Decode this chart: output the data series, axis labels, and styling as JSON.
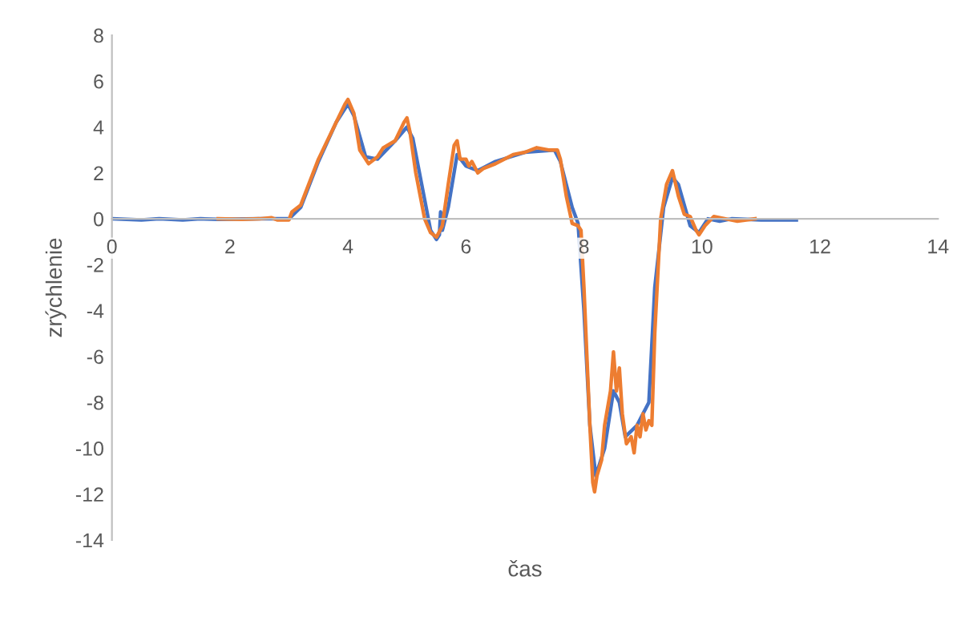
{
  "chart_data": {
    "type": "line",
    "xlabel": "čas",
    "ylabel": "zrýchlenie",
    "xlim": [
      0,
      14
    ],
    "xticks": [
      0,
      2,
      4,
      6,
      8,
      10,
      12,
      14
    ],
    "ylim": [
      -14,
      8
    ],
    "yticks": [
      -14,
      -12,
      -10,
      -8,
      -6,
      -4,
      -2,
      0,
      2,
      4,
      6,
      8
    ],
    "grid": false,
    "marker": "none",
    "line_style": "solid",
    "series": [
      {
        "color": "#4472c4",
        "x": [
          0,
          0.5,
          0.8,
          1.2,
          1.5,
          1.8,
          2.5,
          3.0,
          3.2,
          3.5,
          3.8,
          4.0,
          4.1,
          4.3,
          4.5,
          4.8,
          5.0,
          5.1,
          5.25,
          5.4,
          5.5,
          5.55,
          5.57,
          5.6,
          5.7,
          5.85,
          6.0,
          6.2,
          6.5,
          7.0,
          7.5,
          7.6,
          7.8,
          7.9,
          8.0,
          8.1,
          8.2,
          8.35,
          8.5,
          8.6,
          8.7,
          8.9,
          9.1,
          9.2,
          9.35,
          9.5,
          9.6,
          9.8,
          9.95,
          10.1,
          10.3,
          10.5,
          11.0,
          11.6
        ],
        "values": [
          0,
          -0.05,
          0,
          -0.05,
          0,
          -0.02,
          0,
          0,
          0.5,
          2.5,
          4.2,
          5.0,
          4.5,
          2.7,
          2.6,
          3.4,
          4.0,
          3.5,
          1.5,
          -0.5,
          -0.9,
          -0.7,
          0.3,
          -0.5,
          0.5,
          2.8,
          2.3,
          2.1,
          2.5,
          2.9,
          3.0,
          2.5,
          0.5,
          -0.2,
          -4,
          -9,
          -11.2,
          -10,
          -7.5,
          -8,
          -9.5,
          -9,
          -8,
          -3,
          0.5,
          1.8,
          1.5,
          -0.3,
          -0.6,
          0,
          -0.1,
          0,
          -0.05,
          -0.05
        ]
      },
      {
        "color": "#ed7d31",
        "x": [
          1.8,
          2.2,
          2.5,
          2.7,
          2.8,
          3.0,
          3.05,
          3.2,
          3.5,
          3.8,
          3.95,
          4.0,
          4.1,
          4.2,
          4.35,
          4.5,
          4.6,
          4.8,
          4.95,
          5.0,
          5.05,
          5.15,
          5.3,
          5.4,
          5.5,
          5.6,
          5.7,
          5.8,
          5.85,
          5.9,
          6.0,
          6.05,
          6.1,
          6.2,
          6.3,
          6.5,
          6.8,
          7.0,
          7.2,
          7.4,
          7.55,
          7.6,
          7.7,
          7.8,
          7.9,
          7.95,
          8.0,
          8.1,
          8.15,
          8.18,
          8.22,
          8.3,
          8.35,
          8.45,
          8.5,
          8.55,
          8.6,
          8.65,
          8.72,
          8.8,
          8.85,
          8.9,
          8.95,
          9.0,
          9.05,
          9.1,
          9.15,
          9.2,
          9.3,
          9.4,
          9.5,
          9.6,
          9.7,
          9.8,
          9.9,
          9.95,
          10.05,
          10.2,
          10.4,
          10.6,
          10.9
        ],
        "values": [
          0,
          -0.02,
          0,
          0.05,
          -0.05,
          -0.05,
          0.3,
          0.6,
          2.6,
          4.2,
          5.0,
          5.2,
          4.6,
          3.0,
          2.4,
          2.7,
          3.1,
          3.4,
          4.2,
          4.4,
          3.8,
          2.0,
          0,
          -0.6,
          -0.8,
          -0.3,
          1.5,
          3.2,
          3.4,
          2.6,
          2.6,
          2.3,
          2.5,
          2.0,
          2.2,
          2.4,
          2.8,
          2.9,
          3.1,
          3.0,
          3.0,
          2.6,
          1.0,
          -0.2,
          -0.3,
          -0.5,
          -3,
          -9,
          -11.5,
          -11.9,
          -11.2,
          -10.5,
          -9,
          -7.5,
          -5.8,
          -7.5,
          -6.5,
          -8.5,
          -9.8,
          -9.5,
          -10.2,
          -9,
          -9.5,
          -8.5,
          -9.2,
          -8.8,
          -9,
          -5,
          0,
          1.5,
          2.1,
          1.0,
          0.2,
          0.1,
          -0.5,
          -0.7,
          -0.3,
          0.1,
          0,
          -0.1,
          0
        ]
      }
    ]
  }
}
